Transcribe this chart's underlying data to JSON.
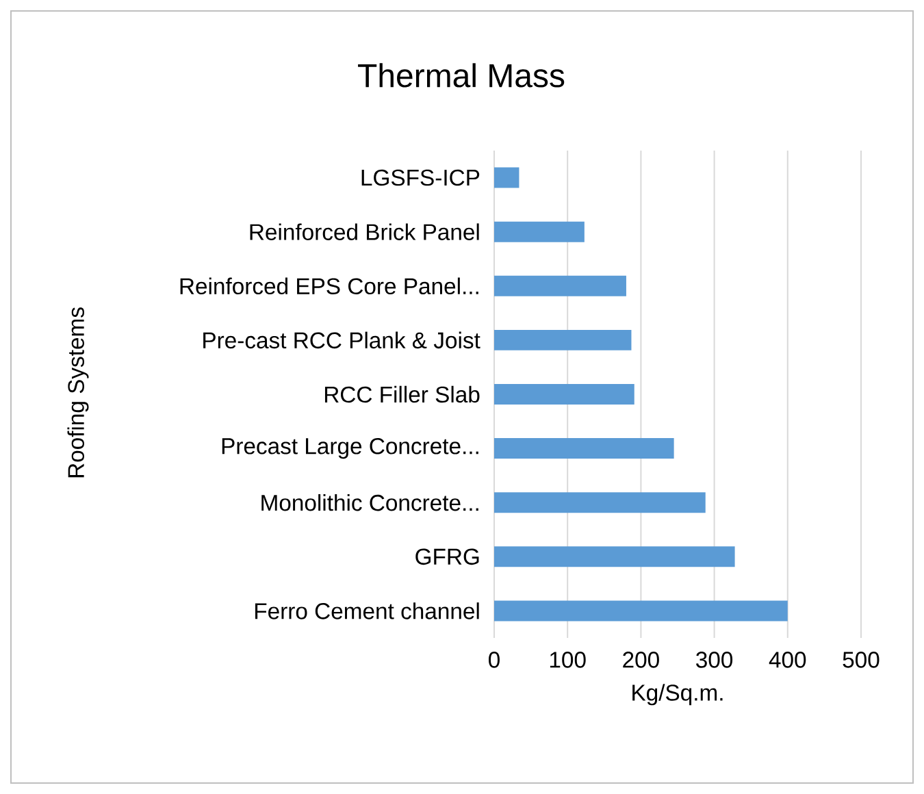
{
  "chart_data": {
    "type": "bar",
    "orientation": "horizontal",
    "title": "Thermal Mass",
    "xlabel": "Kg/Sq.m.",
    "ylabel": "Roofing Systems",
    "categories": [
      "LGSFS-ICP",
      "Reinforced Brick Panel",
      "Reinforced EPS Core Panel...",
      "Pre-cast RCC Plank & Joist",
      "RCC Filler Slab",
      "Precast Large Concrete...",
      "Monolithic Concrete...",
      "GFRG",
      "Ferro Cement channel"
    ],
    "values": [
      34,
      123,
      180,
      187,
      191,
      245,
      288,
      328,
      400
    ],
    "color": "#5b9bd5",
    "xlim": [
      0,
      500
    ],
    "xticks": [
      0,
      100,
      200,
      300,
      400,
      500
    ],
    "grid": "x"
  }
}
